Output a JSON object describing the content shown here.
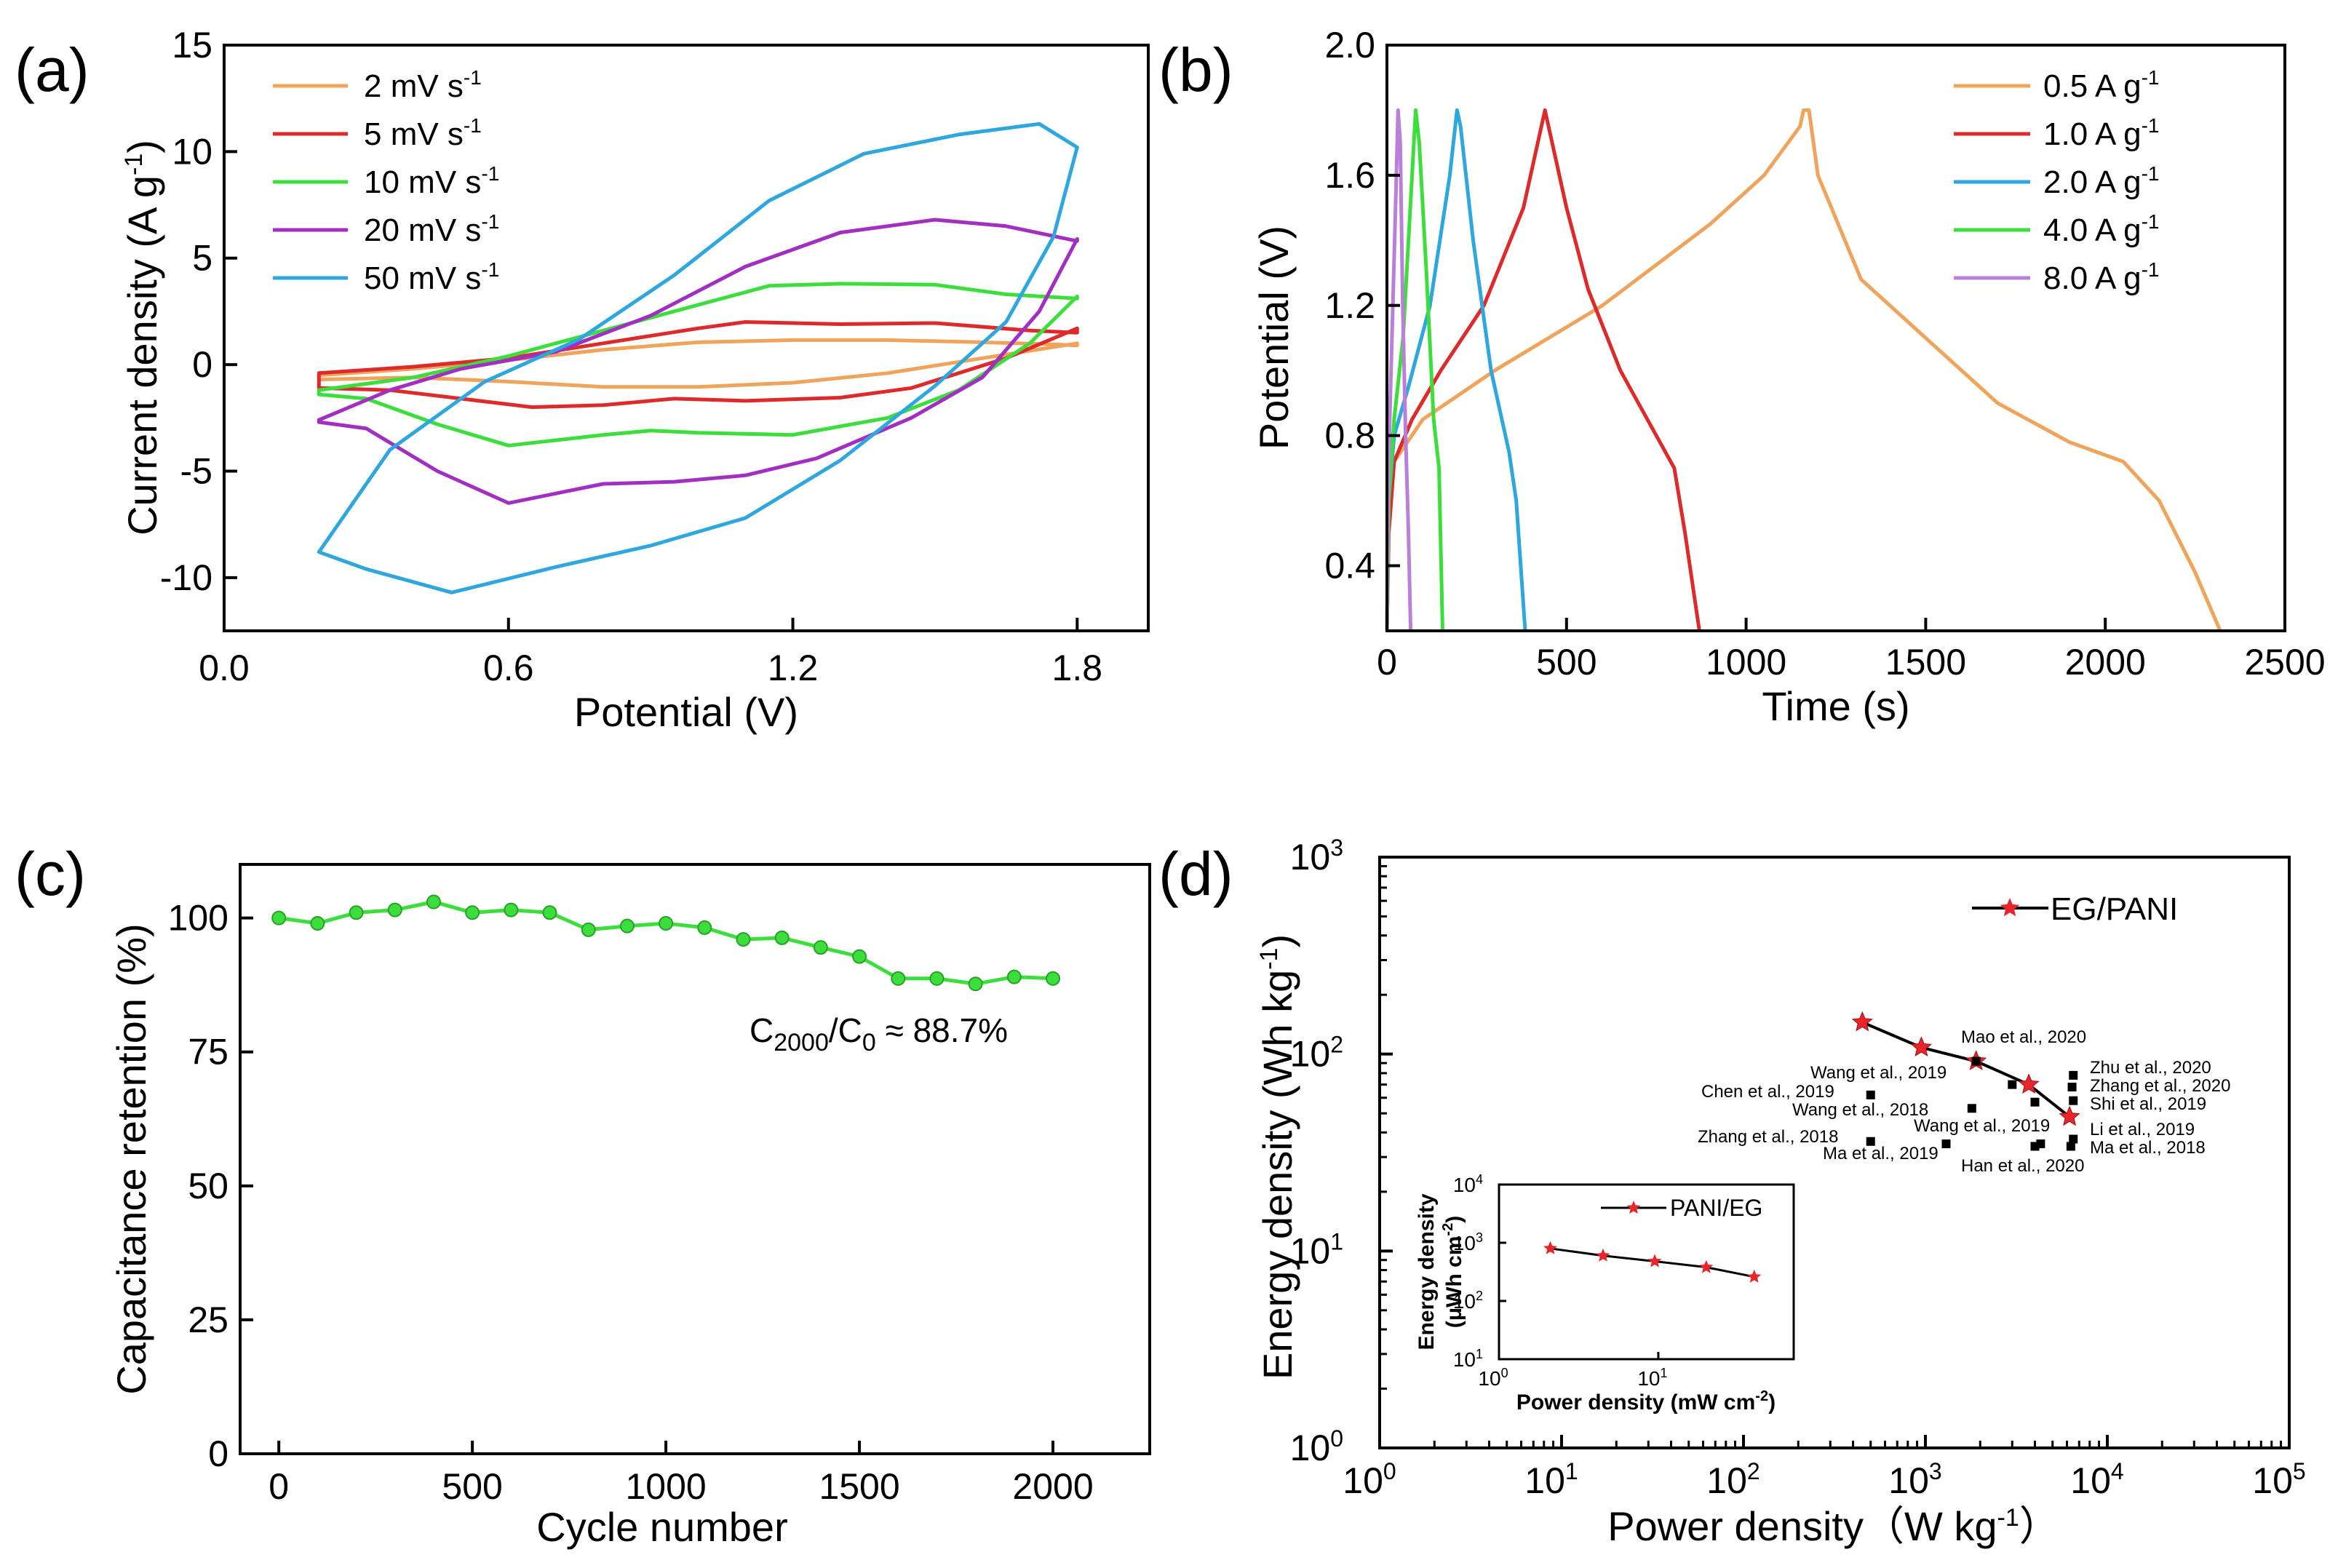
{
  "chart_data": [
    {
      "panel": "(a)",
      "type": "line",
      "xlabel": "Potential (V)",
      "ylabel": "Current density (A g",
      "ylabel_sup": "-1",
      "ylabel_end": ")",
      "xlim": [
        0,
        1.95
      ],
      "ylim": [
        -12.5,
        15
      ],
      "xticks": [
        0,
        0.6,
        1.2,
        1.8
      ],
      "xtick_labels": [
        "0.0",
        "0.6",
        "1.2",
        "1.8"
      ],
      "yticks": [
        -10,
        -5,
        0,
        5,
        10,
        15
      ],
      "ytick_labels": [
        "-10",
        "-5",
        "0",
        "5",
        "10",
        "15"
      ],
      "legend_position": "top-left",
      "series": [
        {
          "name": "2 mV s",
          "sup": "-1",
          "color": "#f0a35a",
          "upper": [
            [
              0.2,
              -0.5
            ],
            [
              0.4,
              -0.2
            ],
            [
              0.6,
              0.2
            ],
            [
              0.8,
              0.7
            ],
            [
              1.0,
              1.05
            ],
            [
              1.2,
              1.15
            ],
            [
              1.4,
              1.15
            ],
            [
              1.6,
              1.05
            ],
            [
              1.75,
              0.95
            ],
            [
              1.8,
              0.9
            ]
          ],
          "lower": [
            [
              1.8,
              1.0
            ],
            [
              1.6,
              0.3
            ],
            [
              1.4,
              -0.4
            ],
            [
              1.2,
              -0.85
            ],
            [
              1.0,
              -1.05
            ],
            [
              0.8,
              -1.05
            ],
            [
              0.6,
              -0.8
            ],
            [
              0.4,
              -0.6
            ],
            [
              0.2,
              -0.7
            ]
          ]
        },
        {
          "name": "5 mV s",
          "sup": "-1",
          "color": "#dd2a2a",
          "upper": [
            [
              0.2,
              -0.4
            ],
            [
              0.4,
              -0.1
            ],
            [
              0.6,
              0.3
            ],
            [
              0.8,
              1.0
            ],
            [
              1.0,
              1.7
            ],
            [
              1.1,
              2.0
            ],
            [
              1.3,
              1.9
            ],
            [
              1.5,
              1.95
            ],
            [
              1.7,
              1.6
            ],
            [
              1.8,
              1.5
            ]
          ],
          "lower": [
            [
              1.8,
              1.7
            ],
            [
              1.65,
              0.3
            ],
            [
              1.45,
              -1.1
            ],
            [
              1.3,
              -1.55
            ],
            [
              1.1,
              -1.7
            ],
            [
              0.95,
              -1.6
            ],
            [
              0.8,
              -1.9
            ],
            [
              0.65,
              -2.0
            ],
            [
              0.5,
              -1.6
            ],
            [
              0.35,
              -1.2
            ],
            [
              0.2,
              -1.1
            ]
          ]
        },
        {
          "name": "10 mV s",
          "sup": "-1",
          "color": "#3bde3b",
          "upper": [
            [
              0.2,
              -1.2
            ],
            [
              0.4,
              -0.6
            ],
            [
              0.6,
              0.4
            ],
            [
              0.8,
              1.6
            ],
            [
              1.0,
              2.8
            ],
            [
              1.15,
              3.7
            ],
            [
              1.3,
              3.8
            ],
            [
              1.5,
              3.75
            ],
            [
              1.65,
              3.3
            ],
            [
              1.8,
              3.1
            ]
          ],
          "lower": [
            [
              1.8,
              3.2
            ],
            [
              1.7,
              1.0
            ],
            [
              1.55,
              -1.2
            ],
            [
              1.4,
              -2.5
            ],
            [
              1.2,
              -3.3
            ],
            [
              1.0,
              -3.2
            ],
            [
              0.9,
              -3.1
            ],
            [
              0.8,
              -3.3
            ],
            [
              0.6,
              -3.8
            ],
            [
              0.45,
              -2.8
            ],
            [
              0.3,
              -1.6
            ],
            [
              0.2,
              -1.4
            ]
          ]
        },
        {
          "name": "20 mV s",
          "sup": "-1",
          "color": "#a22fc2",
          "upper": [
            [
              0.2,
              -2.6
            ],
            [
              0.35,
              -1.2
            ],
            [
              0.5,
              -0.2
            ],
            [
              0.7,
              0.6
            ],
            [
              0.9,
              2.3
            ],
            [
              1.1,
              4.6
            ],
            [
              1.3,
              6.2
            ],
            [
              1.5,
              6.8
            ],
            [
              1.65,
              6.5
            ],
            [
              1.8,
              5.8
            ]
          ],
          "lower": [
            [
              1.8,
              5.9
            ],
            [
              1.72,
              2.5
            ],
            [
              1.6,
              -0.6
            ],
            [
              1.45,
              -2.5
            ],
            [
              1.25,
              -4.4
            ],
            [
              1.1,
              -5.2
            ],
            [
              0.95,
              -5.5
            ],
            [
              0.8,
              -5.6
            ],
            [
              0.6,
              -6.5
            ],
            [
              0.45,
              -5.0
            ],
            [
              0.3,
              -3.0
            ],
            [
              0.2,
              -2.7
            ]
          ]
        },
        {
          "name": "50 mV s",
          "sup": "-1",
          "color": "#2ea7de",
          "upper": [
            [
              0.2,
              -8.8
            ],
            [
              0.35,
              -4.0
            ],
            [
              0.55,
              -0.8
            ],
            [
              0.75,
              1.2
            ],
            [
              0.95,
              4.2
            ],
            [
              1.15,
              7.7
            ],
            [
              1.35,
              9.9
            ],
            [
              1.55,
              10.8
            ],
            [
              1.72,
              11.3
            ],
            [
              1.8,
              10.2
            ]
          ],
          "lower": [
            [
              1.8,
              10.2
            ],
            [
              1.75,
              6.0
            ],
            [
              1.65,
              2.0
            ],
            [
              1.5,
              -1.0
            ],
            [
              1.3,
              -4.5
            ],
            [
              1.1,
              -7.2
            ],
            [
              0.9,
              -8.5
            ],
            [
              0.7,
              -9.5
            ],
            [
              0.48,
              -10.7
            ],
            [
              0.3,
              -9.6
            ],
            [
              0.2,
              -8.8
            ]
          ]
        }
      ]
    },
    {
      "panel": "(b)",
      "type": "line",
      "xlabel": "Time (s)",
      "ylabel": "Potential (V)",
      "xlim": [
        0,
        2500
      ],
      "ylim": [
        0.2,
        2.0
      ],
      "xticks": [
        0,
        500,
        1000,
        1500,
        2000,
        2500
      ],
      "xtick_labels": [
        "0",
        "500",
        "1000",
        "1500",
        "2000",
        "2500"
      ],
      "yticks": [
        0.4,
        0.8,
        1.2,
        1.6,
        2.0
      ],
      "ytick_labels": [
        "0.4",
        "0.8",
        "1.2",
        "1.6",
        "2.0"
      ],
      "legend_position": "top-right",
      "series": [
        {
          "name": "0.5 A g",
          "sup": "-1",
          "color": "#f0a35a",
          "points": [
            [
              0,
              0.2
            ],
            [
              5,
              0.5
            ],
            [
              20,
              0.72
            ],
            [
              100,
              0.85
            ],
            [
              300,
              1.0
            ],
            [
              600,
              1.2
            ],
            [
              900,
              1.45
            ],
            [
              1050,
              1.6
            ],
            [
              1150,
              1.75
            ],
            [
              1160,
              1.8
            ],
            [
              1175,
              1.8
            ],
            [
              1200,
              1.6
            ],
            [
              1320,
              1.28
            ],
            [
              1500,
              1.1
            ],
            [
              1700,
              0.9
            ],
            [
              1900,
              0.78
            ],
            [
              2050,
              0.72
            ],
            [
              2150,
              0.6
            ],
            [
              2250,
              0.38
            ],
            [
              2320,
              0.2
            ]
          ]
        },
        {
          "name": "1.0 A g",
          "sup": "-1",
          "color": "#dd2a2a",
          "points": [
            [
              0,
              0.2
            ],
            [
              5,
              0.5
            ],
            [
              20,
              0.72
            ],
            [
              70,
              0.85
            ],
            [
              150,
              1.0
            ],
            [
              270,
              1.2
            ],
            [
              380,
              1.5
            ],
            [
              420,
              1.7
            ],
            [
              440,
              1.8
            ],
            [
              450,
              1.75
            ],
            [
              500,
              1.5
            ],
            [
              560,
              1.25
            ],
            [
              650,
              1.0
            ],
            [
              750,
              0.8
            ],
            [
              800,
              0.7
            ],
            [
              830,
              0.5
            ],
            [
              870,
              0.2
            ]
          ]
        },
        {
          "name": "2.0 A g",
          "sup": "-1",
          "color": "#2ea7de",
          "points": [
            [
              0,
              0.2
            ],
            [
              5,
              0.6
            ],
            [
              20,
              0.8
            ],
            [
              60,
              0.95
            ],
            [
              120,
              1.2
            ],
            [
              175,
              1.6
            ],
            [
              195,
              1.8
            ],
            [
              205,
              1.75
            ],
            [
              240,
              1.4
            ],
            [
              290,
              1.0
            ],
            [
              340,
              0.75
            ],
            [
              360,
              0.6
            ],
            [
              385,
              0.2
            ]
          ]
        },
        {
          "name": "4.0 A g",
          "sup": "-1",
          "color": "#3bde3b",
          "points": [
            [
              0,
              0.2
            ],
            [
              5,
              0.6
            ],
            [
              20,
              0.85
            ],
            [
              45,
              1.1
            ],
            [
              65,
              1.5
            ],
            [
              80,
              1.8
            ],
            [
              90,
              1.7
            ],
            [
              110,
              1.3
            ],
            [
              130,
              0.85
            ],
            [
              145,
              0.7
            ],
            [
              155,
              0.2
            ]
          ]
        },
        {
          "name": "8.0 A g",
          "sup": "-1",
          "color": "#b97fd9",
          "points": [
            [
              0,
              0.2
            ],
            [
              4,
              0.7
            ],
            [
              14,
              1.1
            ],
            [
              24,
              1.5
            ],
            [
              31,
              1.8
            ],
            [
              37,
              1.7
            ],
            [
              44,
              1.2
            ],
            [
              52,
              0.8
            ],
            [
              60,
              0.5
            ],
            [
              66,
              0.2
            ]
          ]
        }
      ]
    },
    {
      "panel": "(c)",
      "type": "line",
      "xlabel": "Cycle number",
      "ylabel": "Capacitance retention (%)",
      "xlim": [
        -100,
        2250
      ],
      "ylim": [
        0,
        110
      ],
      "xticks": [
        0,
        500,
        1000,
        1500,
        2000
      ],
      "xtick_labels": [
        "0",
        "500",
        "1000",
        "1500",
        "2000"
      ],
      "yticks": [
        0,
        25,
        50,
        75,
        100
      ],
      "ytick_labels": [
        "0",
        "25",
        "50",
        "75",
        "100"
      ],
      "color": "#3bde3b",
      "x": [
        0,
        100,
        200,
        300,
        400,
        500,
        600,
        700,
        800,
        900,
        1000,
        1100,
        1200,
        1300,
        1400,
        1500,
        1600,
        1700,
        1800,
        1900,
        2000
      ],
      "y": [
        100,
        99,
        101,
        101.5,
        103,
        101,
        101.5,
        101,
        97.8,
        98.5,
        99,
        98.2,
        96,
        96.3,
        94.5,
        92.8,
        88.7,
        88.7,
        87.7,
        89,
        88.7
      ],
      "annotation": {
        "main": "C",
        "sub1": "2000",
        "mid": "/C",
        "sub2": "0",
        "rest": " ≈ 88.7%"
      }
    },
    {
      "panel": "(d)",
      "type": "scatter",
      "xscale": "log",
      "yscale": "log",
      "xlabel": "Power density（W kg",
      "xlabel_sup": "-1",
      "xlabel_end": "）",
      "ylabel": "Energy density (Wh kg",
      "ylabel_sup": "-1",
      "ylabel_end": ")",
      "xlim_exp": [
        0,
        5
      ],
      "ylim_exp": [
        0,
        3
      ],
      "tick_base": "10",
      "xtick_exps": [
        "0",
        "1",
        "2",
        "3",
        "4",
        "5"
      ],
      "ytick_exps": [
        "0",
        "1",
        "2",
        "3"
      ],
      "legend_position": "top-right",
      "eg_pani": {
        "name": "EG/PANI",
        "color": "#e8252a",
        "x": [
          450,
          950,
          1900,
          3700,
          6200
        ],
        "y": [
          145,
          108,
          92,
          70,
          48
        ]
      },
      "references": [
        {
          "label": "Mao et al., 2020",
          "x": 1900,
          "y": 92
        },
        {
          "label": "Wang et al., 2019",
          "x": 3000,
          "y": 70
        },
        {
          "label": "Zhu et al., 2020",
          "x": 6500,
          "y": 78
        },
        {
          "label": "Zhang et al., 2020",
          "x": 6400,
          "y": 68
        },
        {
          "label": "Chen et al., 2019",
          "x": 500,
          "y": 62
        },
        {
          "label": "Shi et al., 2019",
          "x": 6500,
          "y": 58
        },
        {
          "label": "Wang et al., 2018",
          "x": 1800,
          "y": 53
        },
        {
          "label": "Wang et al., 2019",
          "x": 4000,
          "y": 57
        },
        {
          "label": "Li et al., 2019",
          "x": 6500,
          "y": 37
        },
        {
          "label": "Zhang et al., 2018",
          "x": 500,
          "y": 36
        },
        {
          "label": "Ma et al., 2019",
          "x": 1300,
          "y": 35
        },
        {
          "label": "Ma et al., 2018",
          "x": 6300,
          "y": 34
        },
        {
          "label": "Han et al., 2020",
          "x": 4000,
          "y": 34
        },
        {
          "label": "",
          "x": 4300,
          "y": 35
        }
      ],
      "inset": {
        "xlabel": "Power density (mW cm",
        "xlabel_sup": "-2",
        "xlabel_end": ")",
        "ylabel_line1": "Energy density",
        "ylabel_line2": "(μWh cm",
        "ylabel_sup": "-2",
        "ylabel_end": ")",
        "xtick_exps": [
          "0",
          "1"
        ],
        "ytick_exps": [
          "1",
          "2",
          "3",
          "4"
        ],
        "series": {
          "name": "PANI/EG",
          "color": "#e8252a",
          "x": [
            2.1,
            4.5,
            9.5,
            20,
            40
          ],
          "y": [
            800,
            600,
            480,
            380,
            260
          ]
        }
      }
    }
  ]
}
